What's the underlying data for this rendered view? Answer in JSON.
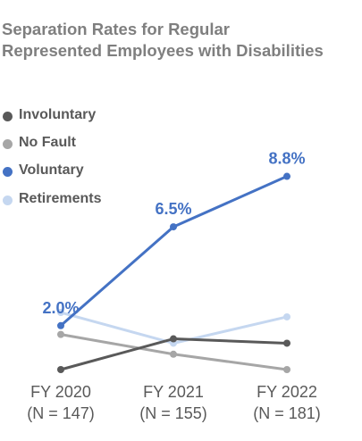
{
  "chart_data": {
    "type": "line",
    "title": [
      "Separation Rates for Regular",
      "Represented Employees with Disabilities"
    ],
    "categories": [
      {
        "label": "FY 2020",
        "sub": "(N = 147)"
      },
      {
        "label": "FY 2021",
        "sub": "(N = 155)"
      },
      {
        "label": "FY 2022",
        "sub": "(N = 181)"
      }
    ],
    "ylim": [
      0,
      10
    ],
    "grid": false,
    "legend_position": "top-left",
    "series": [
      {
        "name": "Involuntary",
        "color": "#595959",
        "values": [
          0.0,
          1.4,
          1.2
        ],
        "labels": [
          null,
          null,
          null
        ]
      },
      {
        "name": "No Fault",
        "color": "#a6a6a6",
        "values": [
          1.6,
          0.7,
          0.0
        ],
        "labels": [
          null,
          null,
          null
        ]
      },
      {
        "name": "Voluntary",
        "color": "#4472c4",
        "values": [
          2.0,
          6.5,
          8.8
        ],
        "labels": [
          "2.0%",
          "6.5%",
          "8.8%"
        ]
      },
      {
        "name": "Retirements",
        "color": "#c5d7f0",
        "values": [
          2.6,
          1.2,
          2.4
        ],
        "labels": [
          null,
          null,
          null
        ]
      }
    ]
  }
}
